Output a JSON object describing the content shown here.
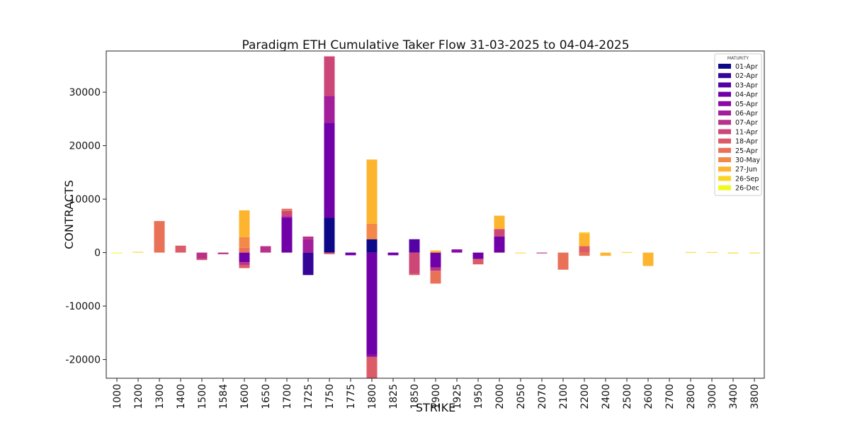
{
  "chart_data": {
    "type": "bar",
    "stacked": true,
    "title": "Paradigm ETH Cumulative Taker Flow 31-03-2025 to 04-04-2025",
    "xlabel": "STRIKE",
    "ylabel": "CONTRACTS",
    "ylim": [
      -23500,
      37700
    ],
    "yticks": [
      -20000,
      -10000,
      0,
      10000,
      20000,
      30000
    ],
    "legend_title": "MATURITY",
    "legend_position": "top-right",
    "categories": [
      "1000",
      "1200",
      "1300",
      "1400",
      "1500",
      "1584",
      "1600",
      "1650",
      "1700",
      "1725",
      "1750",
      "1775",
      "1800",
      "1825",
      "1850",
      "1900",
      "1925",
      "1950",
      "2000",
      "2050",
      "2070",
      "2100",
      "2200",
      "2400",
      "2500",
      "2600",
      "2700",
      "2800",
      "3000",
      "3400",
      "3800"
    ],
    "series": [
      {
        "name": "01-Apr",
        "color": "#0d0887",
        "values": [
          0,
          0,
          0,
          0,
          0,
          0,
          0,
          0,
          0,
          0,
          6500,
          0,
          2500,
          0,
          0,
          0,
          0,
          0,
          0,
          0,
          0,
          0,
          0,
          0,
          0,
          0,
          0,
          0,
          0,
          0,
          0
        ]
      },
      {
        "name": "02-Apr",
        "color": "#350498",
        "values": [
          0,
          0,
          0,
          0,
          0,
          0,
          0,
          0,
          0,
          -4200,
          0,
          0,
          0,
          0,
          0,
          0,
          0,
          0,
          0,
          0,
          0,
          0,
          0,
          0,
          0,
          0,
          0,
          0,
          0,
          0,
          0
        ]
      },
      {
        "name": "03-Apr",
        "color": "#5402a3",
        "values": [
          0,
          0,
          0,
          0,
          0,
          0,
          0,
          0,
          0,
          0,
          0,
          0,
          0,
          0,
          2500,
          0,
          0,
          0,
          0,
          0,
          0,
          0,
          0,
          0,
          0,
          0,
          0,
          0,
          0,
          0,
          0
        ]
      },
      {
        "name": "04-Apr",
        "color": "#7000a8",
        "values": [
          0,
          0,
          0,
          0,
          0,
          0,
          -1800,
          0,
          6500,
          0,
          17800,
          -500,
          -19000,
          -500,
          0,
          -2800,
          0,
          -1200,
          3000,
          0,
          0,
          0,
          0,
          0,
          0,
          0,
          0,
          0,
          0,
          0,
          0
        ]
      },
      {
        "name": "05-Apr",
        "color": "#8b0aa5",
        "values": [
          0,
          0,
          0,
          0,
          0,
          0,
          0,
          0,
          0,
          0,
          0,
          0,
          -500,
          0,
          0,
          0,
          600,
          0,
          0,
          0,
          0,
          0,
          0,
          0,
          0,
          0,
          0,
          0,
          0,
          0,
          0
        ]
      },
      {
        "name": "06-Apr",
        "color": "#a31e9a",
        "values": [
          0,
          0,
          0,
          0,
          0,
          0,
          0,
          0,
          300,
          2500,
          5000,
          0,
          0,
          0,
          0,
          0,
          0,
          0,
          0,
          0,
          0,
          0,
          0,
          0,
          0,
          0,
          0,
          0,
          0,
          0,
          0
        ]
      },
      {
        "name": "07-Apr",
        "color": "#b83289",
        "values": [
          0,
          0,
          0,
          0,
          -1200,
          -300,
          -500,
          1200,
          0,
          500,
          0,
          0,
          0,
          0,
          0,
          -600,
          0,
          0,
          0,
          0,
          -150,
          0,
          0,
          0,
          0,
          0,
          0,
          0,
          0,
          0,
          0
        ]
      },
      {
        "name": "11-Apr",
        "color": "#cc4778",
        "values": [
          0,
          0,
          0,
          0,
          0,
          0,
          0,
          0,
          1000,
          0,
          7400,
          0,
          0,
          0,
          -4000,
          0,
          0,
          0,
          1400,
          0,
          0,
          0,
          0,
          0,
          0,
          0,
          0,
          0,
          0,
          0,
          0
        ]
      },
      {
        "name": "18-Apr",
        "color": "#db5c68",
        "values": [
          0,
          0,
          0,
          1300,
          -200,
          0,
          -600,
          0,
          0,
          0,
          -300,
          0,
          -4000,
          0,
          -200,
          0,
          0,
          -1000,
          0,
          0,
          0,
          0,
          1200,
          0,
          0,
          0,
          0,
          0,
          0,
          0,
          0
        ]
      },
      {
        "name": "25-Apr",
        "color": "#e97158",
        "values": [
          0,
          0,
          5900,
          0,
          0,
          0,
          900,
          0,
          400,
          0,
          0,
          0,
          0,
          0,
          0,
          -2400,
          0,
          0,
          0,
          0,
          0,
          -3200,
          -600,
          0,
          0,
          0,
          0,
          0,
          0,
          0,
          0
        ]
      },
      {
        "name": "30-May",
        "color": "#f48849",
        "values": [
          0,
          0,
          0,
          0,
          0,
          0,
          2000,
          0,
          0,
          0,
          0,
          0,
          2900,
          0,
          0,
          0,
          0,
          0,
          0,
          0,
          0,
          0,
          0,
          0,
          0,
          0,
          0,
          0,
          0,
          0,
          0
        ]
      },
      {
        "name": "27-Jun",
        "color": "#fdb42f",
        "values": [
          0,
          0,
          0,
          0,
          0,
          0,
          5000,
          0,
          0,
          0,
          0,
          0,
          12000,
          0,
          0,
          400,
          0,
          0,
          2500,
          0,
          0,
          0,
          2400,
          -600,
          0,
          -2500,
          0,
          0,
          0,
          0,
          0
        ]
      },
      {
        "name": "26-Sep",
        "color": "#fbd524",
        "values": [
          0,
          150,
          0,
          0,
          0,
          0,
          0,
          0,
          0,
          0,
          0,
          0,
          0,
          0,
          0,
          0,
          0,
          0,
          0,
          -100,
          0,
          0,
          200,
          0,
          100,
          0,
          0,
          100,
          100,
          -150,
          -100
        ]
      },
      {
        "name": "26-Dec",
        "color": "#f0f921",
        "values": [
          -50,
          0,
          0,
          0,
          0,
          0,
          0,
          0,
          0,
          0,
          0,
          0,
          0,
          0,
          0,
          0,
          0,
          0,
          0,
          0,
          0,
          0,
          0,
          0,
          0,
          0,
          0,
          0,
          0,
          0,
          0
        ]
      }
    ]
  }
}
